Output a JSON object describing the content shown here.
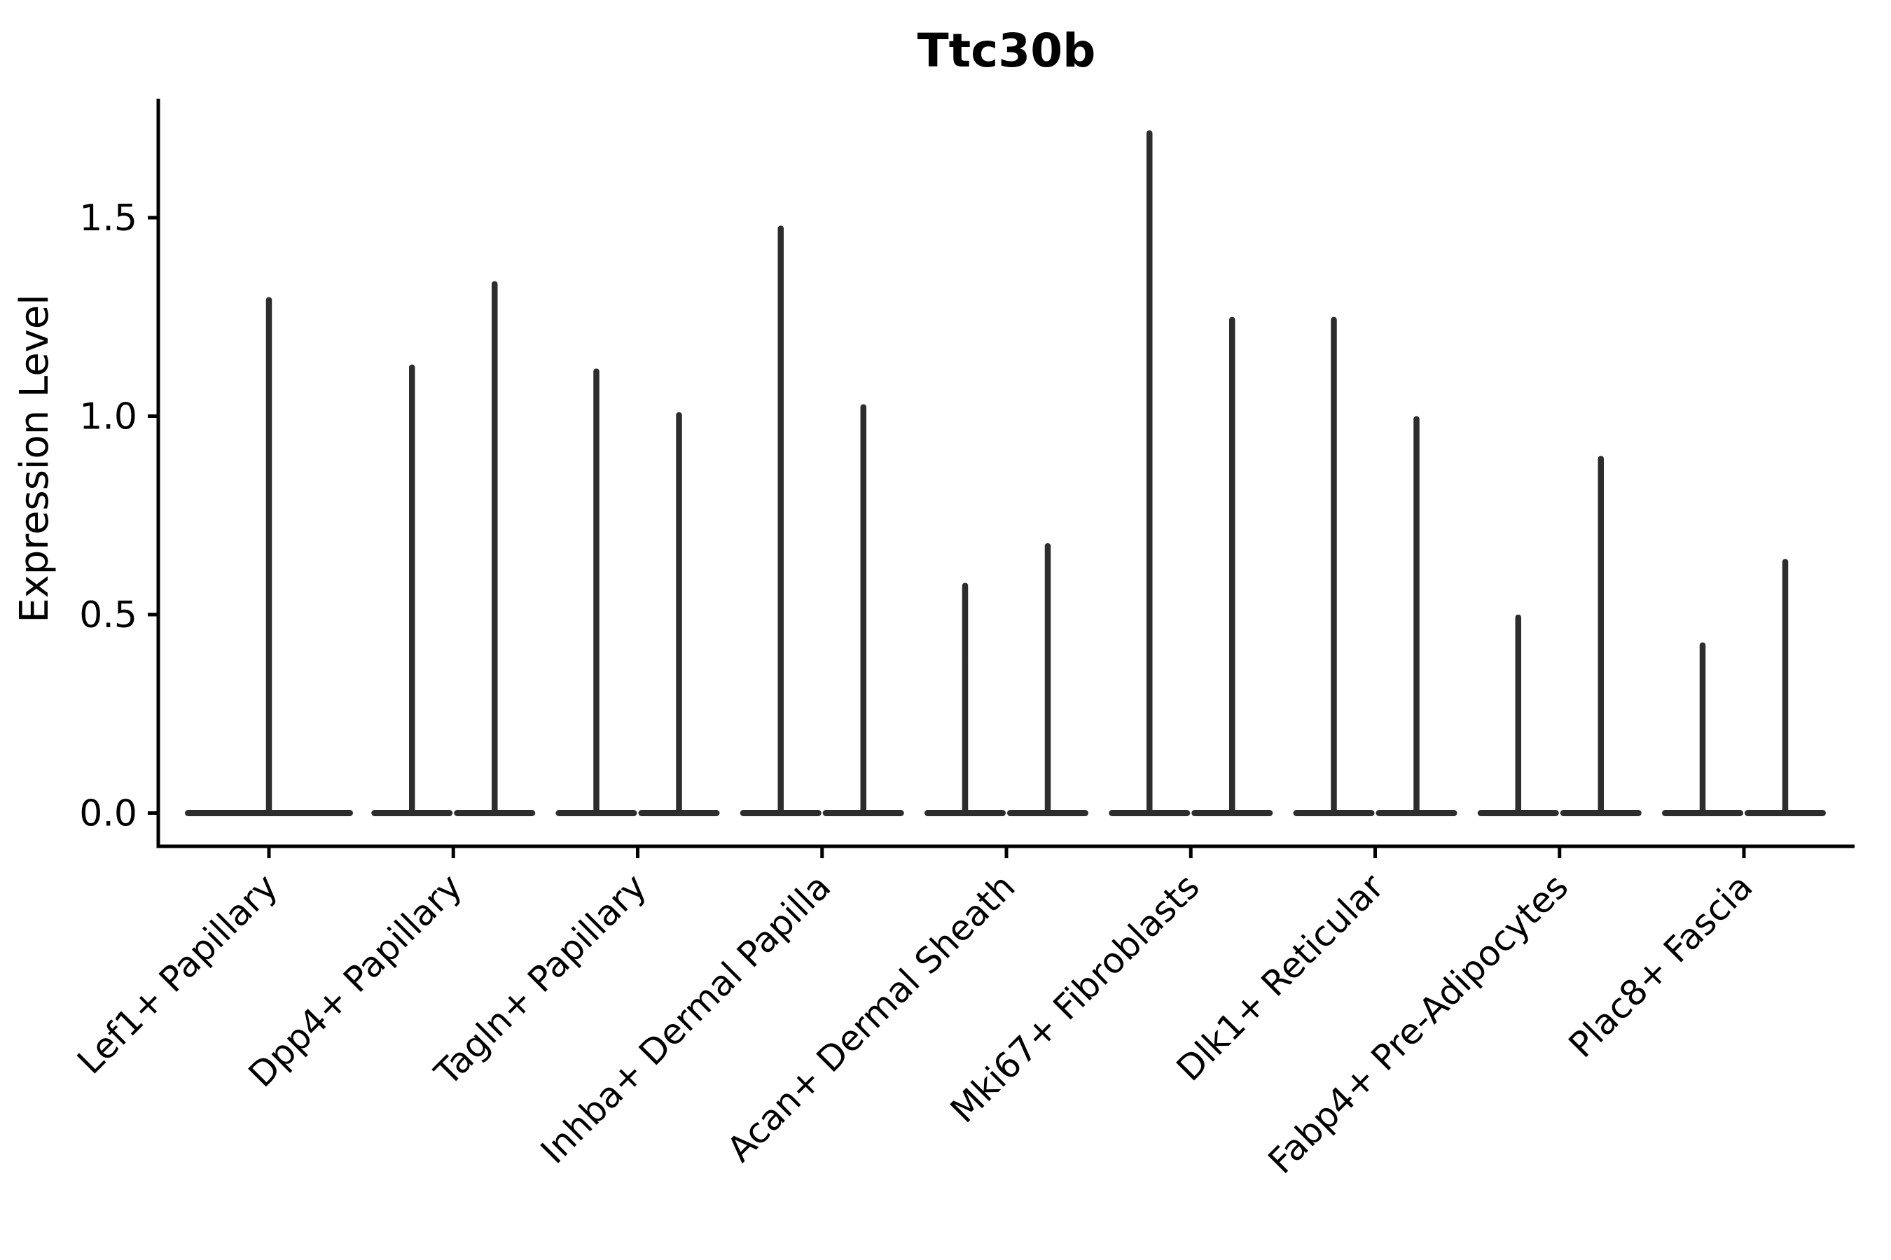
{
  "figure": {
    "title": "Ttc30b",
    "ylabel": "Expression Level"
  },
  "chart_data": {
    "type": "violin",
    "title": "Ttc30b",
    "xlabel": "",
    "ylabel": "Expression Level",
    "yticks": [
      "0.0",
      "0.5",
      "1.0",
      "1.5"
    ],
    "ytick_values": [
      0.0,
      0.5,
      1.0,
      1.5
    ],
    "ylim": [
      -0.08,
      1.8
    ],
    "grid": false,
    "legend": "none",
    "background": "#ffffff",
    "axis_color": "#000000",
    "violin_color": "#2d2d2d",
    "text_color": "#000000",
    "baseline_value": 0,
    "description": "Zero-inflated expression violins: each violin is a wide flat base at 0 with a thin density spike up to its max expression value. Categories 2-9 contain two side-by-side violins (left/right), category 1 a single centered violin.",
    "categories": [
      "Lef1+ Papillary",
      "Dpp4+ Papillary",
      "Tagln+ Papillary",
      "Inhba+ Dermal Papilla",
      "Acan+ Dermal Sheath",
      "Mki67+ Fibroblasts",
      "Dlk1+ Reticular",
      "Fabp4+ Pre-Adipocytes",
      "Plac8+ Fascia"
    ],
    "violins": [
      {
        "category": "Lef1+ Papillary",
        "spikes": [
          {
            "side": "center",
            "max": 1.3,
            "points": []
          }
        ]
      },
      {
        "category": "Dpp4+ Papillary",
        "spikes": [
          {
            "side": "left",
            "max": 1.13,
            "points": []
          },
          {
            "side": "right",
            "max": 1.34,
            "points": []
          }
        ]
      },
      {
        "category": "Tagln+ Papillary",
        "spikes": [
          {
            "side": "left",
            "max": 1.12,
            "points": []
          },
          {
            "side": "right",
            "max": 1.01,
            "points": []
          }
        ]
      },
      {
        "category": "Inhba+ Dermal Papilla",
        "spikes": [
          {
            "side": "left",
            "max": 1.48,
            "points": []
          },
          {
            "side": "right",
            "max": 1.03,
            "points": []
          }
        ]
      },
      {
        "category": "Acan+ Dermal Sheath",
        "spikes": [
          {
            "side": "left",
            "max": 0.58,
            "points": [
              0.55,
              0.5,
              0.38
            ]
          },
          {
            "side": "right",
            "max": 0.68,
            "points": []
          }
        ]
      },
      {
        "category": "Mki67+ Fibroblasts",
        "spikes": [
          {
            "side": "left",
            "max": 1.72,
            "points": []
          },
          {
            "side": "right",
            "max": 1.25,
            "points": []
          }
        ]
      },
      {
        "category": "Dlk1+ Reticular",
        "spikes": [
          {
            "side": "left",
            "max": 1.25,
            "points": []
          },
          {
            "side": "right",
            "max": 1.0,
            "points": []
          }
        ]
      },
      {
        "category": "Fabp4+ Pre-Adipocytes",
        "spikes": [
          {
            "side": "left",
            "max": 0.5,
            "points": []
          },
          {
            "side": "right",
            "max": 0.9,
            "points": [
              0.51,
              0.49,
              0.4
            ]
          }
        ]
      },
      {
        "category": "Plac8+ Fascia",
        "spikes": [
          {
            "side": "left",
            "max": 0.43,
            "points": []
          },
          {
            "side": "right",
            "max": 0.64,
            "points": [
              0.4
            ]
          }
        ]
      }
    ]
  }
}
